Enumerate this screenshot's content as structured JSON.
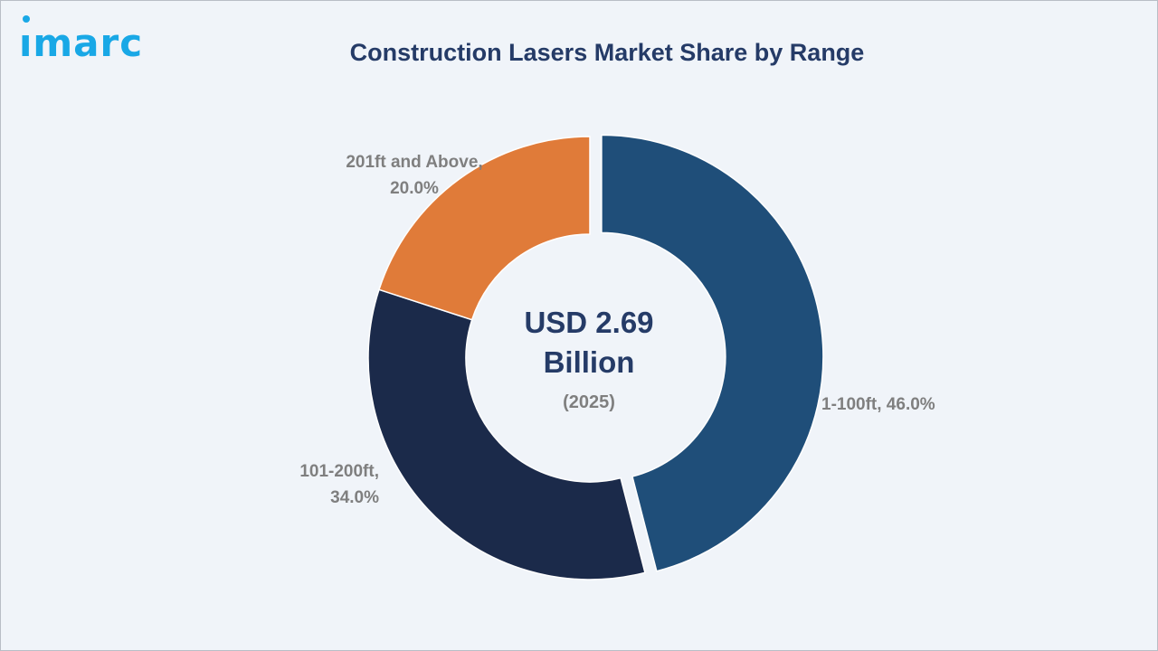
{
  "logo": {
    "text": "ımarc",
    "color": "#19a8e6"
  },
  "chart_data": {
    "type": "pie",
    "title": "Construction Lasers Market Share by Range",
    "slices": [
      {
        "label_line1": "1-100ft, 46.0%",
        "label_line2": "",
        "category": "1-100ft",
        "value": 46.0,
        "color": "#1f4e79",
        "exploded": true
      },
      {
        "label_line1": "101-200ft,",
        "label_line2": "34.0%",
        "category": "101-200ft",
        "value": 34.0,
        "color": "#1b2a4a",
        "exploded": false
      },
      {
        "label_line1": "201ft and Above,",
        "label_line2": "20.0%",
        "category": "201ft and Above",
        "value": 20.0,
        "color": "#e07b39",
        "exploded": false
      }
    ],
    "center_text": {
      "line1": "USD 2.69",
      "line2": "Billion",
      "line3": "(2025)"
    },
    "donut": true,
    "start_angle": "top",
    "direction": "clockwise"
  }
}
